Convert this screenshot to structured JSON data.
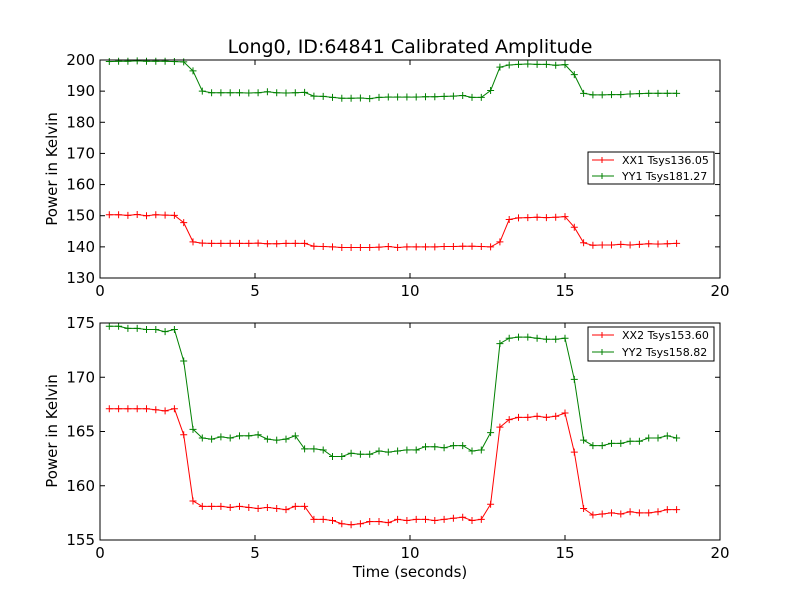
{
  "chart_data": [
    {
      "type": "line",
      "title": "Long0, ID:64841 Calibrated Amplitude",
      "xlabel": "",
      "ylabel": "Power in Kelvin",
      "xlim": [
        0,
        20
      ],
      "ylim": [
        130,
        200
      ],
      "xticks": [
        0,
        5,
        10,
        15,
        20
      ],
      "yticks": [
        130,
        140,
        150,
        160,
        170,
        180,
        190,
        200
      ],
      "legend_position": "center-right",
      "grid": false,
      "x": [
        0.3,
        0.6,
        0.9,
        1.2,
        1.5,
        1.8,
        2.1,
        2.4,
        2.7,
        3.0,
        3.3,
        3.6,
        3.9,
        4.2,
        4.5,
        4.8,
        5.1,
        5.4,
        5.7,
        6.0,
        6.3,
        6.6,
        6.9,
        7.2,
        7.5,
        7.8,
        8.1,
        8.4,
        8.7,
        9.0,
        9.3,
        9.6,
        9.9,
        10.2,
        10.5,
        10.8,
        11.1,
        11.4,
        11.7,
        12.0,
        12.3,
        12.6,
        12.9,
        13.2,
        13.5,
        13.8,
        14.1,
        14.4,
        14.7,
        15.0,
        15.3,
        15.6,
        15.9,
        16.2,
        16.5,
        16.8,
        17.1,
        17.4,
        17.7,
        18.0,
        18.3,
        18.6
      ],
      "series": [
        {
          "name": "XX1 Tsys136.05",
          "color": "#ff0000",
          "values": [
            150.3,
            150.3,
            150.1,
            150.4,
            150.0,
            150.3,
            150.2,
            150.1,
            147.8,
            141.6,
            141.2,
            141.1,
            141.1,
            141.1,
            141.1,
            141.1,
            141.2,
            141.0,
            141.0,
            141.1,
            141.1,
            141.1,
            140.2,
            140.1,
            140.0,
            139.8,
            139.8,
            139.8,
            139.8,
            139.9,
            140.1,
            139.8,
            140.0,
            140.0,
            140.0,
            140.0,
            140.1,
            140.1,
            140.2,
            140.2,
            140.1,
            140.0,
            141.6,
            148.8,
            149.3,
            149.4,
            149.5,
            149.4,
            149.5,
            149.7,
            146.3,
            141.3,
            140.5,
            140.6,
            140.6,
            140.8,
            140.6,
            140.8,
            141.0,
            140.9,
            141.0,
            141.1
          ]
        },
        {
          "name": "YY1 Tsys181.27",
          "color": "#008000",
          "values": [
            199.5,
            199.6,
            199.6,
            199.7,
            199.6,
            199.6,
            199.6,
            199.5,
            199.4,
            196.5,
            190.0,
            189.5,
            189.5,
            189.5,
            189.5,
            189.4,
            189.5,
            189.8,
            189.5,
            189.4,
            189.5,
            189.6,
            188.4,
            188.3,
            188.0,
            187.7,
            187.7,
            187.8,
            187.6,
            188.0,
            188.1,
            188.1,
            188.1,
            188.1,
            188.2,
            188.2,
            188.3,
            188.4,
            188.6,
            188.0,
            188.0,
            190.2,
            197.7,
            198.4,
            198.6,
            198.7,
            198.6,
            198.6,
            198.3,
            198.5,
            195.3,
            189.3,
            188.8,
            188.8,
            188.9,
            188.9,
            189.1,
            189.2,
            189.3,
            189.3,
            189.3,
            189.3
          ]
        }
      ]
    },
    {
      "type": "line",
      "title": "",
      "xlabel": "Time (seconds)",
      "ylabel": "Power in Kelvin",
      "xlim": [
        0,
        20
      ],
      "ylim": [
        155,
        175
      ],
      "xticks": [
        0,
        5,
        10,
        15,
        20
      ],
      "yticks": [
        155,
        160,
        165,
        170,
        175
      ],
      "legend_position": "top-right",
      "grid": false,
      "x": [
        0.3,
        0.6,
        0.9,
        1.2,
        1.5,
        1.8,
        2.1,
        2.4,
        2.7,
        3.0,
        3.3,
        3.6,
        3.9,
        4.2,
        4.5,
        4.8,
        5.1,
        5.4,
        5.7,
        6.0,
        6.3,
        6.6,
        6.9,
        7.2,
        7.5,
        7.8,
        8.1,
        8.4,
        8.7,
        9.0,
        9.3,
        9.6,
        9.9,
        10.2,
        10.5,
        10.8,
        11.1,
        11.4,
        11.7,
        12.0,
        12.3,
        12.6,
        12.9,
        13.2,
        13.5,
        13.8,
        14.1,
        14.4,
        14.7,
        15.0,
        15.3,
        15.6,
        15.9,
        16.2,
        16.5,
        16.8,
        17.1,
        17.4,
        17.7,
        18.0,
        18.3,
        18.6
      ],
      "series": [
        {
          "name": "XX2 Tsys153.60",
          "color": "#ff0000",
          "values": [
            167.1,
            167.1,
            167.1,
            167.1,
            167.1,
            167.0,
            166.9,
            167.1,
            164.7,
            158.6,
            158.1,
            158.1,
            158.1,
            158.0,
            158.1,
            158.0,
            157.9,
            158.0,
            157.9,
            157.8,
            158.1,
            158.1,
            156.9,
            156.9,
            156.8,
            156.5,
            156.4,
            156.5,
            156.7,
            156.7,
            156.6,
            156.9,
            156.8,
            156.9,
            156.9,
            156.8,
            156.9,
            157.0,
            157.1,
            156.8,
            156.9,
            158.3,
            165.4,
            166.1,
            166.3,
            166.3,
            166.4,
            166.3,
            166.4,
            166.7,
            163.1,
            157.9,
            157.3,
            157.4,
            157.5,
            157.4,
            157.6,
            157.5,
            157.5,
            157.6,
            157.8,
            157.8
          ]
        },
        {
          "name": "YY2 Tsys158.82",
          "color": "#008000",
          "values": [
            174.7,
            174.7,
            174.5,
            174.5,
            174.4,
            174.4,
            174.2,
            174.4,
            171.5,
            165.2,
            164.4,
            164.3,
            164.5,
            164.4,
            164.6,
            164.6,
            164.7,
            164.3,
            164.2,
            164.3,
            164.6,
            163.4,
            163.4,
            163.3,
            162.7,
            162.7,
            163.0,
            162.9,
            162.9,
            163.2,
            163.1,
            163.2,
            163.3,
            163.3,
            163.6,
            163.6,
            163.5,
            163.7,
            163.7,
            163.2,
            163.3,
            164.9,
            173.1,
            173.6,
            173.7,
            173.7,
            173.6,
            173.5,
            173.5,
            173.6,
            169.8,
            164.2,
            163.7,
            163.7,
            163.9,
            163.9,
            164.1,
            164.1,
            164.4,
            164.4,
            164.6,
            164.4
          ]
        }
      ]
    }
  ]
}
